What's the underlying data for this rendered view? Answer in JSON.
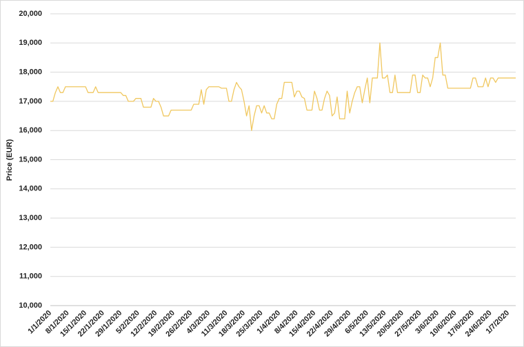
{
  "chart_data": {
    "type": "line",
    "ylabel": "Price (EUR)",
    "color": "#f0c75e",
    "grid": true,
    "ylim": [
      10000,
      20000
    ],
    "yticks": [
      {
        "value": 10000,
        "label": "10,000"
      },
      {
        "value": 11000,
        "label": "11,000"
      },
      {
        "value": 12000,
        "label": "12,000"
      },
      {
        "value": 13000,
        "label": "13,000"
      },
      {
        "value": 14000,
        "label": "14,000"
      },
      {
        "value": 15000,
        "label": "15,000"
      },
      {
        "value": 16000,
        "label": "16,000"
      },
      {
        "value": 17000,
        "label": "17,000"
      },
      {
        "value": 18000,
        "label": "18,000"
      },
      {
        "value": 19000,
        "label": "19,000"
      },
      {
        "value": 20000,
        "label": "20,000"
      }
    ],
    "categories": [
      "1/1/2020",
      null,
      null,
      null,
      null,
      null,
      null,
      "8/1/2020",
      null,
      null,
      null,
      null,
      null,
      null,
      "15/1/2020",
      null,
      null,
      null,
      null,
      null,
      null,
      "22/1/2020",
      null,
      null,
      null,
      null,
      null,
      null,
      "29/1/2020",
      null,
      null,
      null,
      null,
      null,
      null,
      "5/2/2020",
      null,
      null,
      null,
      null,
      null,
      null,
      "12/2/2020",
      null,
      null,
      null,
      null,
      null,
      null,
      "19/2/2020",
      null,
      null,
      null,
      null,
      null,
      null,
      "26/2/2020",
      null,
      null,
      null,
      null,
      null,
      null,
      "4/3/2020",
      null,
      null,
      null,
      null,
      null,
      null,
      "11/3/2020",
      null,
      null,
      null,
      null,
      null,
      null,
      "18/3/2020",
      null,
      null,
      null,
      null,
      null,
      null,
      "25/3/2020",
      null,
      null,
      null,
      null,
      null,
      null,
      "1/4/2020",
      null,
      null,
      null,
      null,
      null,
      null,
      "8/4/2020",
      null,
      null,
      null,
      null,
      null,
      null,
      "15/4/2020",
      null,
      null,
      null,
      null,
      null,
      null,
      "22/4/2020",
      null,
      null,
      null,
      null,
      null,
      null,
      "29/4/2020",
      null,
      null,
      null,
      null,
      null,
      null,
      "6/5/2020",
      null,
      null,
      null,
      null,
      null,
      null,
      "13/5/2020",
      null,
      null,
      null,
      null,
      null,
      null,
      "20/5/2020",
      null,
      null,
      null,
      null,
      null,
      null,
      "27/5/2020",
      null,
      null,
      null,
      null,
      null,
      null,
      "3/6/2020",
      null,
      null,
      null,
      null,
      null,
      null,
      "10/6/2020",
      null,
      null,
      null,
      null,
      null,
      null,
      "17/6/2020",
      null,
      null,
      null,
      null,
      null,
      null,
      "24/6/2020",
      null,
      null,
      null,
      null,
      null,
      null,
      "1/7/2020",
      null,
      null,
      null
    ],
    "values": [
      17000,
      17000,
      17300,
      17500,
      17300,
      17300,
      17500,
      17500,
      17500,
      17500,
      17500,
      17500,
      17500,
      17500,
      17500,
      17300,
      17300,
      17300,
      17500,
      17300,
      17300,
      17300,
      17300,
      17300,
      17300,
      17300,
      17300,
      17300,
      17300,
      17200,
      17200,
      17000,
      17000,
      17000,
      17100,
      17100,
      17100,
      16800,
      16800,
      16800,
      16800,
      17100,
      17000,
      17000,
      16800,
      16500,
      16500,
      16500,
      16700,
      16700,
      16700,
      16700,
      16700,
      16700,
      16700,
      16700,
      16700,
      16900,
      16900,
      16900,
      17400,
      16900,
      17400,
      17500,
      17500,
      17500,
      17500,
      17500,
      17450,
      17450,
      17450,
      17000,
      17000,
      17400,
      17650,
      17500,
      17400,
      17000,
      16500,
      16850,
      16000,
      16500,
      16850,
      16850,
      16600,
      16850,
      16600,
      16600,
      16400,
      16400,
      16900,
      17100,
      17100,
      17650,
      17650,
      17650,
      17650,
      17150,
      17350,
      17350,
      17150,
      17100,
      16700,
      16700,
      16700,
      17350,
      17100,
      16700,
      16700,
      17100,
      17350,
      17200,
      16500,
      16600,
      17150,
      16400,
      16400,
      16400,
      17350,
      16600,
      17000,
      17300,
      17500,
      17500,
      16950,
      17400,
      17800,
      16950,
      17800,
      17800,
      17800,
      19000,
      17800,
      17800,
      17900,
      17300,
      17300,
      17900,
      17300,
      17300,
      17300,
      17300,
      17300,
      17300,
      17900,
      17900,
      17300,
      17300,
      17900,
      17800,
      17800,
      17500,
      17800,
      18500,
      18500,
      19000,
      17900,
      17900,
      17450,
      17450,
      17450,
      17450,
      17450,
      17450,
      17450,
      17450,
      17450,
      17450,
      17800,
      17800,
      17500,
      17500,
      17500,
      17800,
      17500,
      17800,
      17800,
      17650,
      17800,
      17800,
      17800,
      17800,
      17800,
      17800,
      17800,
      17800
    ]
  }
}
